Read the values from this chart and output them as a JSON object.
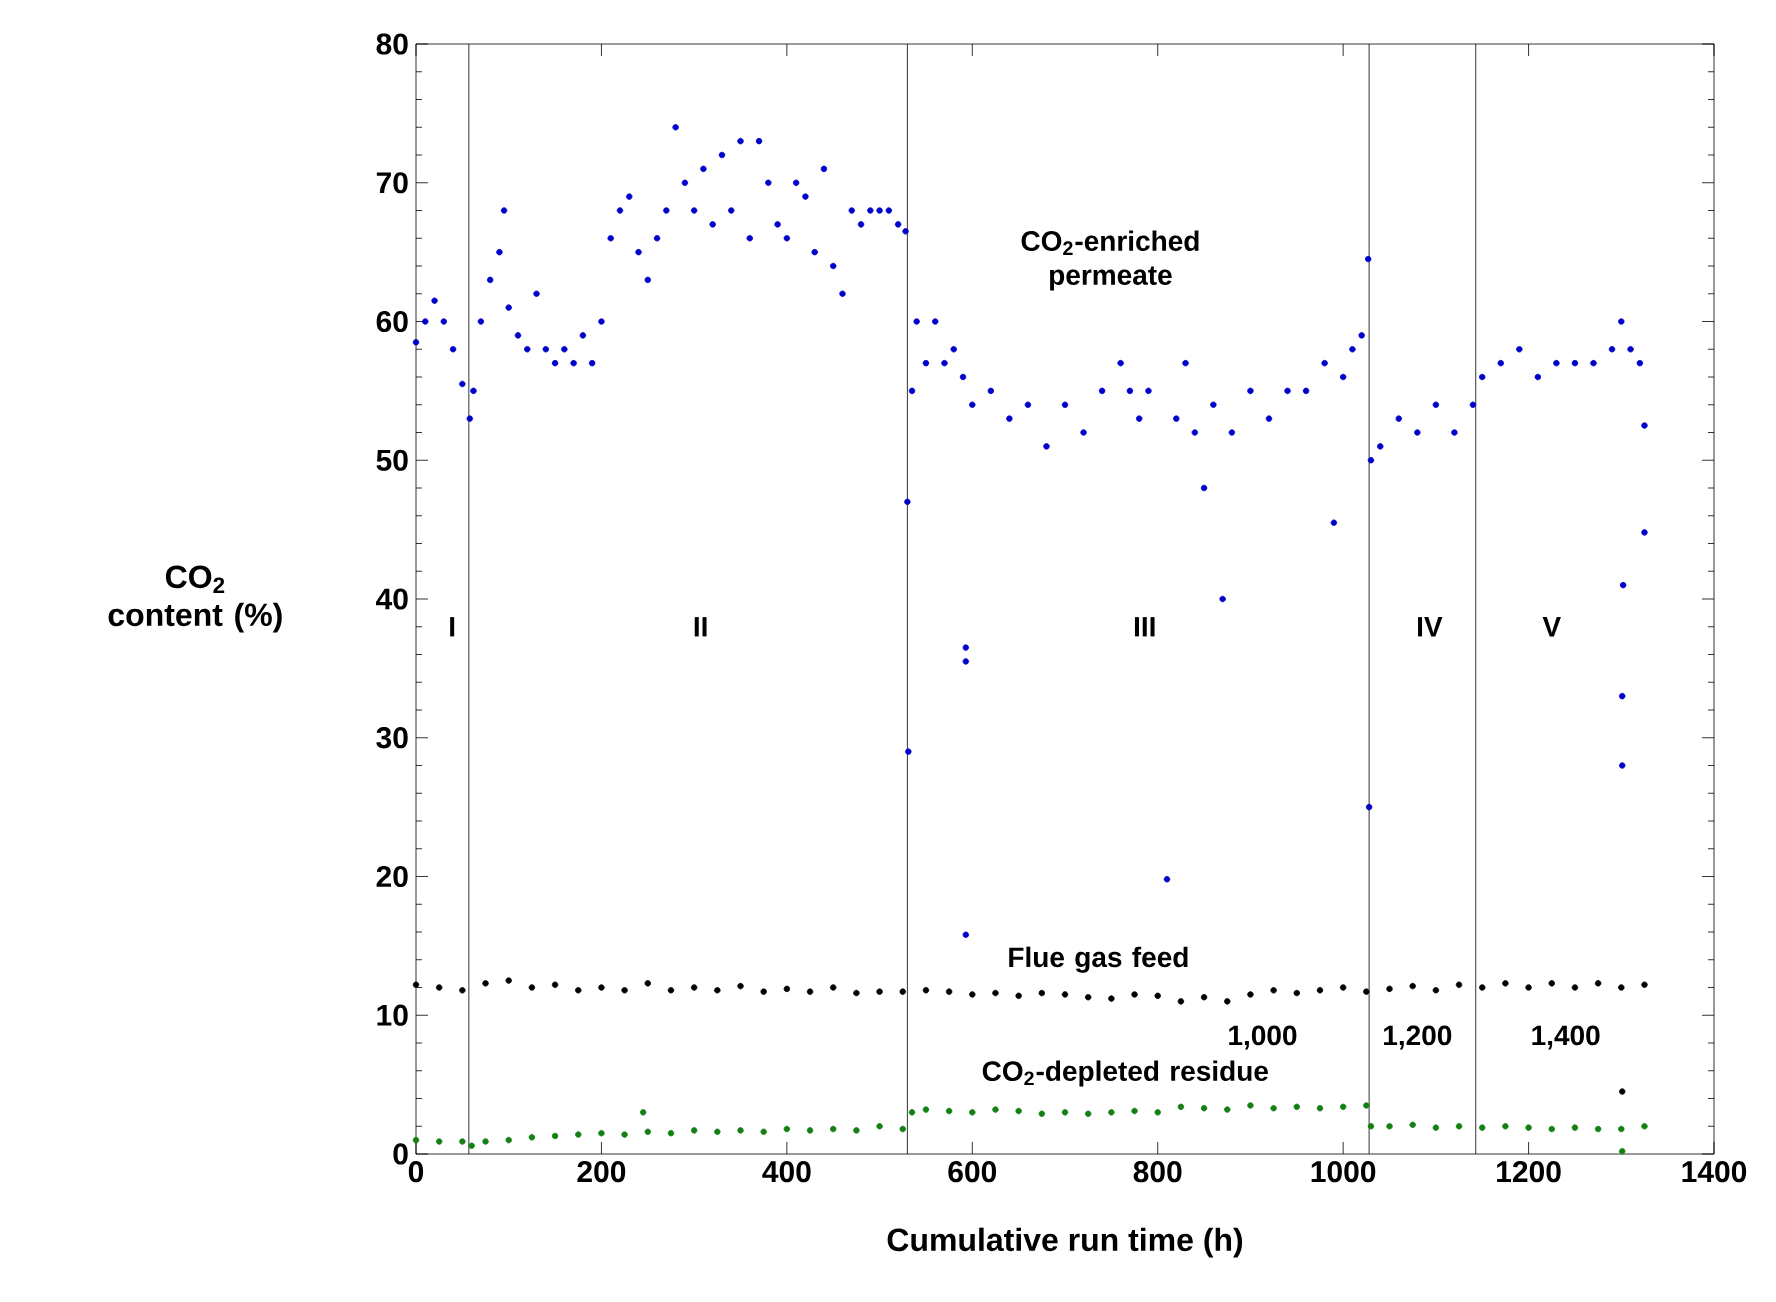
{
  "chart_data": {
    "type": "scatter",
    "xlabel": "Cumulative run time (h)",
    "ylabel": "CO$_{2}$ content (%)",
    "xlim": [
      0,
      1400
    ],
    "xticks": [
      0,
      200,
      400,
      600,
      800,
      1000,
      1200,
      1400
    ],
    "ylim": [
      0,
      80
    ],
    "yticks": [
      0,
      10,
      20,
      30,
      40,
      50,
      60,
      70,
      80
    ],
    "marker": "circle",
    "series": [
      {
        "name": "CO$_{2}$-enriched permeate",
        "color": "#0000cc",
        "x": [
          0,
          10,
          20,
          30,
          40,
          50,
          58,
          62,
          70,
          80,
          90,
          95,
          100,
          110,
          120,
          130,
          140,
          150,
          160,
          170,
          180,
          190,
          200,
          210,
          220,
          230,
          240,
          250,
          260,
          270,
          280,
          290,
          300,
          310,
          320,
          330,
          340,
          350,
          360,
          370,
          380,
          390,
          400,
          410,
          420,
          430,
          440,
          450,
          460,
          470,
          480,
          490,
          500,
          510,
          520,
          528,
          530,
          531,
          535,
          540,
          550,
          560,
          570,
          580,
          590,
          593,
          593,
          593,
          600,
          620,
          640,
          660,
          680,
          700,
          720,
          740,
          760,
          770,
          780,
          790,
          810,
          820,
          830,
          840,
          850,
          860,
          870,
          880,
          900,
          920,
          940,
          960,
          980,
          990,
          1000,
          1010,
          1020,
          1027,
          1028,
          1030,
          1040,
          1060,
          1080,
          1100,
          1120,
          1140,
          1150,
          1170,
          1190,
          1210,
          1230,
          1250,
          1270,
          1290,
          1300,
          1301,
          1301,
          1302,
          1310,
          1320,
          1325,
          1325
        ],
        "values": [
          58.5,
          60,
          61.5,
          60,
          58,
          55.5,
          53,
          55,
          60,
          63,
          65,
          68,
          61,
          59,
          58,
          62,
          58,
          57,
          58,
          57,
          59,
          57,
          60,
          66,
          68,
          69,
          65,
          63,
          66,
          68,
          74,
          70,
          68,
          71,
          67,
          72,
          68,
          73,
          66,
          73,
          70,
          67,
          66,
          70,
          69,
          65,
          71,
          64,
          62,
          68,
          67,
          68,
          68,
          68,
          67,
          66.5,
          47,
          29,
          55,
          60,
          57,
          60,
          57,
          58,
          56,
          36.5,
          35.5,
          15.8,
          54,
          55,
          53,
          54,
          51,
          54,
          52,
          55,
          57,
          55,
          53,
          55,
          19.8,
          53,
          57,
          52,
          48,
          54,
          40,
          52,
          55,
          53,
          55,
          55,
          57,
          45.5,
          56,
          58,
          59,
          64.5,
          25,
          50,
          51,
          53,
          52,
          54,
          52,
          54,
          56,
          57,
          58,
          56,
          57,
          57,
          57,
          58,
          60,
          33,
          28,
          41,
          58,
          57,
          52.5,
          44.8
        ]
      },
      {
        "name": "Flue gas feed",
        "color": "#000000",
        "x": [
          0,
          25,
          50,
          75,
          100,
          125,
          150,
          175,
          200,
          225,
          250,
          275,
          300,
          325,
          350,
          375,
          400,
          425,
          450,
          475,
          500,
          525,
          550,
          575,
          600,
          625,
          650,
          675,
          700,
          725,
          750,
          775,
          800,
          825,
          850,
          875,
          900,
          925,
          950,
          975,
          1000,
          1025,
          1050,
          1075,
          1100,
          1125,
          1150,
          1175,
          1200,
          1225,
          1250,
          1275,
          1300,
          1301,
          1325
        ],
        "values": [
          12.2,
          12,
          11.8,
          12.3,
          12.5,
          12,
          12.2,
          11.8,
          12,
          11.8,
          12.3,
          11.8,
          12,
          11.8,
          12.1,
          11.7,
          11.9,
          11.7,
          12,
          11.6,
          11.7,
          11.7,
          11.8,
          11.7,
          11.5,
          11.6,
          11.4,
          11.6,
          11.5,
          11.3,
          11.2,
          11.5,
          11.4,
          11,
          11.3,
          11,
          11.5,
          11.8,
          11.6,
          11.8,
          12,
          11.7,
          11.9,
          12.1,
          11.8,
          12.2,
          12,
          12.3,
          12,
          12.3,
          12,
          12.3,
          12,
          4.5,
          12.2
        ]
      },
      {
        "name": "CO$_{2}$-depleted residue",
        "color": "#138013",
        "x": [
          0,
          25,
          50,
          60,
          75,
          100,
          125,
          150,
          175,
          200,
          225,
          245,
          250,
          275,
          300,
          325,
          350,
          375,
          400,
          425,
          450,
          475,
          500,
          525,
          535,
          550,
          575,
          600,
          625,
          650,
          675,
          700,
          725,
          750,
          775,
          800,
          825,
          850,
          875,
          900,
          925,
          950,
          975,
          1000,
          1025,
          1030,
          1050,
          1075,
          1100,
          1125,
          1150,
          1175,
          1200,
          1225,
          1250,
          1275,
          1300,
          1301,
          1325
        ],
        "values": [
          1,
          0.9,
          0.9,
          0.6,
          0.9,
          1,
          1.2,
          1.3,
          1.4,
          1.5,
          1.4,
          3,
          1.6,
          1.5,
          1.7,
          1.6,
          1.7,
          1.6,
          1.8,
          1.7,
          1.8,
          1.7,
          2,
          1.8,
          3,
          3.2,
          3.1,
          3,
          3.2,
          3.1,
          2.9,
          3,
          2.9,
          3,
          3.1,
          3,
          3.4,
          3.3,
          3.2,
          3.5,
          3.3,
          3.4,
          3.3,
          3.4,
          3.5,
          2,
          2,
          2.1,
          1.9,
          2,
          1.9,
          2,
          1.9,
          1.8,
          1.9,
          1.8,
          1.8,
          0.2,
          2
        ]
      }
    ],
    "ref_lines": [
      {
        "axis": "x",
        "value": 57,
        "color": "#000000"
      },
      {
        "axis": "x",
        "value": 530,
        "color": "#000000"
      },
      {
        "axis": "x",
        "value": 1028,
        "color": "#000000"
      },
      {
        "axis": "x",
        "value": 1143,
        "color": "#000000"
      }
    ],
    "annotations": [
      "I",
      "II",
      "III",
      "IV",
      "V",
      "1,000",
      "1,200",
      "1,400"
    ]
  }
}
